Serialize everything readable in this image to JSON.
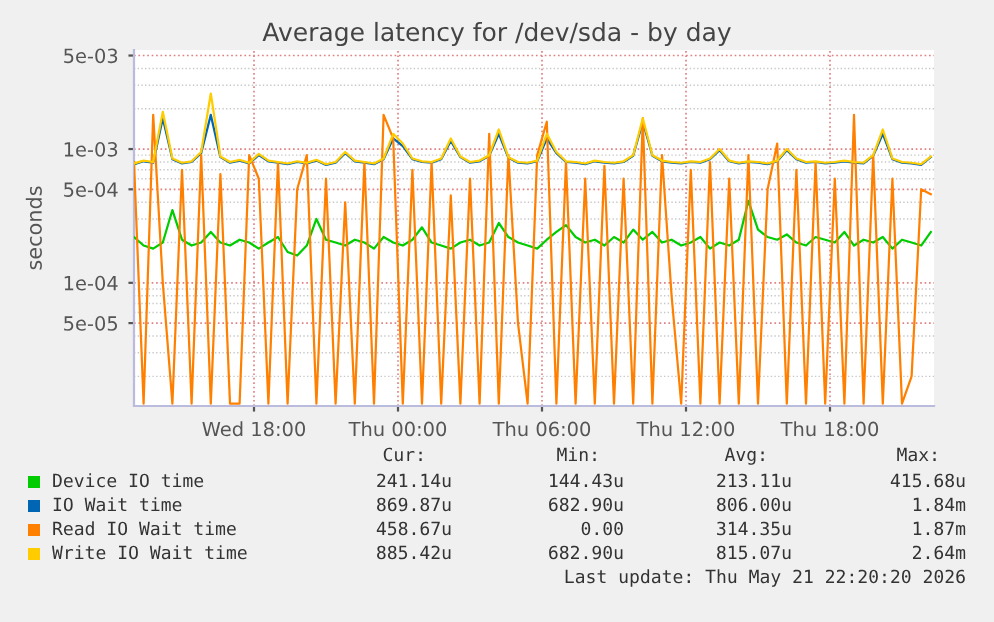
{
  "chart_data": {
    "type": "line",
    "title": "Average latency for /dev/sda - by day",
    "ylabel": "seconds",
    "log": "y",
    "grid": true,
    "legend": "bottom",
    "marker": "none",
    "line_style": "solid",
    "xlim": [
      "2026-05-20T13:00",
      "2026-05-21T22:20"
    ],
    "xticks": [
      {
        "value": "2026-05-20T18:00",
        "label": "Wed 18:00"
      },
      {
        "value": "2026-05-21T00:00",
        "label": "Thu 00:00"
      },
      {
        "value": "2026-05-21T06:00",
        "label": "Thu 06:00"
      },
      {
        "value": "2026-05-21T12:00",
        "label": "Thu 12:00"
      },
      {
        "value": "2026-05-21T18:00",
        "label": "Thu 18:00"
      }
    ],
    "ylim": [
      1.2e-05,
      0.0055
    ],
    "yticks": [
      {
        "value": 0.005,
        "label": "5e-03"
      },
      {
        "value": 0.001,
        "label": "1e-03"
      },
      {
        "value": 0.0005,
        "label": "5e-04"
      },
      {
        "value": 0.0001,
        "label": "1e-04"
      },
      {
        "value": 5e-05,
        "label": "5e-05"
      }
    ],
    "x": [
      "2026-05-20T13:00",
      "2026-05-20T13:24",
      "2026-05-20T13:48",
      "2026-05-20T14:12",
      "2026-05-20T14:36",
      "2026-05-20T15:00",
      "2026-05-20T15:24",
      "2026-05-20T15:48",
      "2026-05-20T16:12",
      "2026-05-20T16:36",
      "2026-05-20T17:00",
      "2026-05-20T17:24",
      "2026-05-20T17:48",
      "2026-05-20T18:12",
      "2026-05-20T18:36",
      "2026-05-20T19:00",
      "2026-05-20T19:24",
      "2026-05-20T19:48",
      "2026-05-20T20:12",
      "2026-05-20T20:36",
      "2026-05-20T21:00",
      "2026-05-20T21:24",
      "2026-05-20T21:48",
      "2026-05-20T22:12",
      "2026-05-20T22:36",
      "2026-05-20T23:00",
      "2026-05-20T23:24",
      "2026-05-20T23:48",
      "2026-05-21T00:12",
      "2026-05-21T00:36",
      "2026-05-21T01:00",
      "2026-05-21T01:24",
      "2026-05-21T01:48",
      "2026-05-21T02:12",
      "2026-05-21T02:36",
      "2026-05-21T03:00",
      "2026-05-21T03:24",
      "2026-05-21T03:48",
      "2026-05-21T04:12",
      "2026-05-21T04:36",
      "2026-05-21T05:00",
      "2026-05-21T05:24",
      "2026-05-21T05:48",
      "2026-05-21T06:12",
      "2026-05-21T06:36",
      "2026-05-21T07:00",
      "2026-05-21T07:24",
      "2026-05-21T07:48",
      "2026-05-21T08:12",
      "2026-05-21T08:36",
      "2026-05-21T09:00",
      "2026-05-21T09:24",
      "2026-05-21T09:48",
      "2026-05-21T10:12",
      "2026-05-21T10:36",
      "2026-05-21T11:00",
      "2026-05-21T11:24",
      "2026-05-21T11:48",
      "2026-05-21T12:12",
      "2026-05-21T12:36",
      "2026-05-21T13:00",
      "2026-05-21T13:24",
      "2026-05-21T13:48",
      "2026-05-21T14:12",
      "2026-05-21T14:36",
      "2026-05-21T15:00",
      "2026-05-21T15:24",
      "2026-05-21T15:48",
      "2026-05-21T16:12",
      "2026-05-21T16:36",
      "2026-05-21T17:00",
      "2026-05-21T17:24",
      "2026-05-21T17:48",
      "2026-05-21T18:12",
      "2026-05-21T18:36",
      "2026-05-21T19:00",
      "2026-05-21T19:24",
      "2026-05-21T19:48",
      "2026-05-21T20:12",
      "2026-05-21T20:36",
      "2026-05-21T21:00",
      "2026-05-21T21:24",
      "2026-05-21T21:48",
      "2026-05-21T22:12"
    ],
    "series": [
      {
        "name": "Device IO time",
        "color": "#00cc00",
        "values": [
          0.00022,
          0.00019,
          0.00018,
          0.0002,
          0.00035,
          0.00021,
          0.00019,
          0.0002,
          0.00024,
          0.0002,
          0.00019,
          0.00021,
          0.0002,
          0.00018,
          0.0002,
          0.00022,
          0.00017,
          0.00016,
          0.00019,
          0.0003,
          0.00021,
          0.0002,
          0.00019,
          0.00021,
          0.0002,
          0.00018,
          0.00022,
          0.0002,
          0.00019,
          0.00021,
          0.00026,
          0.0002,
          0.00019,
          0.00018,
          0.0002,
          0.00021,
          0.00019,
          0.0002,
          0.00028,
          0.00022,
          0.0002,
          0.00019,
          0.00018,
          0.00021,
          0.00024,
          0.00027,
          0.00022,
          0.0002,
          0.00021,
          0.00019,
          0.00022,
          0.0002,
          0.00025,
          0.00021,
          0.00024,
          0.0002,
          0.00021,
          0.00019,
          0.0002,
          0.00022,
          0.00018,
          0.0002,
          0.00019,
          0.00021,
          0.00041,
          0.00025,
          0.00022,
          0.00021,
          0.00023,
          0.0002,
          0.00019,
          0.00022,
          0.00021,
          0.0002,
          0.00024,
          0.00019,
          0.00021,
          0.0002,
          0.00022,
          0.00018,
          0.00021,
          0.0002,
          0.00019,
          0.00024
        ]
      },
      {
        "name": "IO Wait time",
        "color": "#0066b3",
        "values": [
          0.00077,
          0.00081,
          0.00079,
          0.0017,
          0.00084,
          0.00078,
          0.0008,
          0.00093,
          0.0018,
          0.00087,
          0.00079,
          0.00082,
          0.00078,
          0.0009,
          0.00081,
          0.00079,
          0.00077,
          0.0008,
          0.00078,
          0.00082,
          0.00076,
          0.00079,
          0.00093,
          0.00081,
          0.00079,
          0.00077,
          0.00084,
          0.0012,
          0.00105,
          0.00084,
          0.0008,
          0.00079,
          0.00084,
          0.00115,
          0.00087,
          0.00079,
          0.00081,
          0.00089,
          0.0013,
          0.00086,
          0.00079,
          0.00078,
          0.00081,
          0.0012,
          0.00093,
          0.0008,
          0.00079,
          0.00077,
          0.00081,
          0.00079,
          0.00078,
          0.0008,
          0.00089,
          0.0016,
          0.00089,
          0.00081,
          0.00079,
          0.00078,
          0.0008,
          0.00079,
          0.00084,
          0.00098,
          0.00081,
          0.00078,
          0.0008,
          0.00079,
          0.00077,
          0.00081,
          0.00098,
          0.00084,
          0.00079,
          0.0008,
          0.00078,
          0.00079,
          0.00081,
          0.00079,
          0.00078,
          0.00089,
          0.0013,
          0.00084,
          0.00079,
          0.00078,
          0.00076,
          0.00087
        ]
      },
      {
        "name": "Read IO Wait time",
        "color": "#ff8000",
        "values": [
          0.0008,
          1.25e-05,
          0.0018,
          0.0001,
          1.25e-05,
          0.0007,
          1.25e-05,
          0.0009,
          1.25e-05,
          0.00065,
          1.25e-05,
          1.25e-05,
          0.0009,
          0.0006,
          1.25e-05,
          0.0008,
          1.25e-05,
          0.0005,
          0.0009,
          1.25e-05,
          0.0006,
          1.25e-05,
          0.0004,
          1.25e-05,
          0.0008,
          1.25e-05,
          0.0018,
          0.0012,
          1.25e-05,
          0.0007,
          1.25e-05,
          0.0008,
          1.25e-05,
          0.00045,
          1.25e-05,
          0.0006,
          1.25e-05,
          0.0013,
          1.25e-05,
          0.0009,
          5e-05,
          1.25e-05,
          0.0009,
          0.0016,
          1.25e-05,
          0.0008,
          1.25e-05,
          0.0006,
          1.25e-05,
          0.00075,
          1.25e-05,
          0.0006,
          1.25e-05,
          0.0017,
          1.25e-05,
          0.0009,
          8e-05,
          1.25e-05,
          0.0007,
          1.25e-05,
          0.0008,
          1.25e-05,
          0.0006,
          1.25e-05,
          0.0009,
          1.25e-05,
          0.0005,
          0.0011,
          1.25e-05,
          0.0007,
          1.25e-05,
          0.0008,
          1.25e-05,
          0.0006,
          1.25e-05,
          0.0018,
          1.25e-05,
          0.0009,
          1.25e-05,
          0.0006,
          1.25e-05,
          2e-05,
          0.0005,
          0.00046
        ]
      },
      {
        "name": "Write IO Wait time",
        "color": "#ffcc00",
        "values": [
          0.00078,
          0.00082,
          0.0008,
          0.0019,
          0.00085,
          0.00079,
          0.00081,
          0.00095,
          0.0026,
          0.00088,
          0.0008,
          0.00083,
          0.00079,
          0.00092,
          0.00082,
          0.0008,
          0.00078,
          0.00081,
          0.00079,
          0.00083,
          0.00077,
          0.0008,
          0.00095,
          0.00082,
          0.0008,
          0.00078,
          0.00085,
          0.0013,
          0.0011,
          0.00085,
          0.00081,
          0.0008,
          0.00085,
          0.0012,
          0.00088,
          0.0008,
          0.00082,
          0.0009,
          0.0014,
          0.00087,
          0.0008,
          0.00079,
          0.00082,
          0.0013,
          0.00095,
          0.00081,
          0.0008,
          0.00078,
          0.00082,
          0.0008,
          0.00079,
          0.00081,
          0.0009,
          0.0017,
          0.0009,
          0.00082,
          0.0008,
          0.00079,
          0.00081,
          0.0008,
          0.00085,
          0.001,
          0.00082,
          0.00079,
          0.00081,
          0.0008,
          0.00078,
          0.00082,
          0.001,
          0.00085,
          0.0008,
          0.00081,
          0.00079,
          0.0008,
          0.00082,
          0.0008,
          0.00079,
          0.0009,
          0.0014,
          0.00085,
          0.0008,
          0.00079,
          0.00077,
          0.00088
        ]
      }
    ],
    "annotations": [
      "Cur:",
      "Min:",
      "Avg:",
      "Max:",
      "241.14u",
      "144.43u",
      "213.11u",
      "415.68u",
      "869.87u",
      "682.90u",
      "806.00u",
      "1.84m",
      "458.67u",
      "0.00",
      "314.35u",
      "1.87m",
      "885.42u",
      "682.90u",
      "815.07u",
      "2.64m",
      "Last update: Thu May 21 22:20:20 2026"
    ]
  }
}
